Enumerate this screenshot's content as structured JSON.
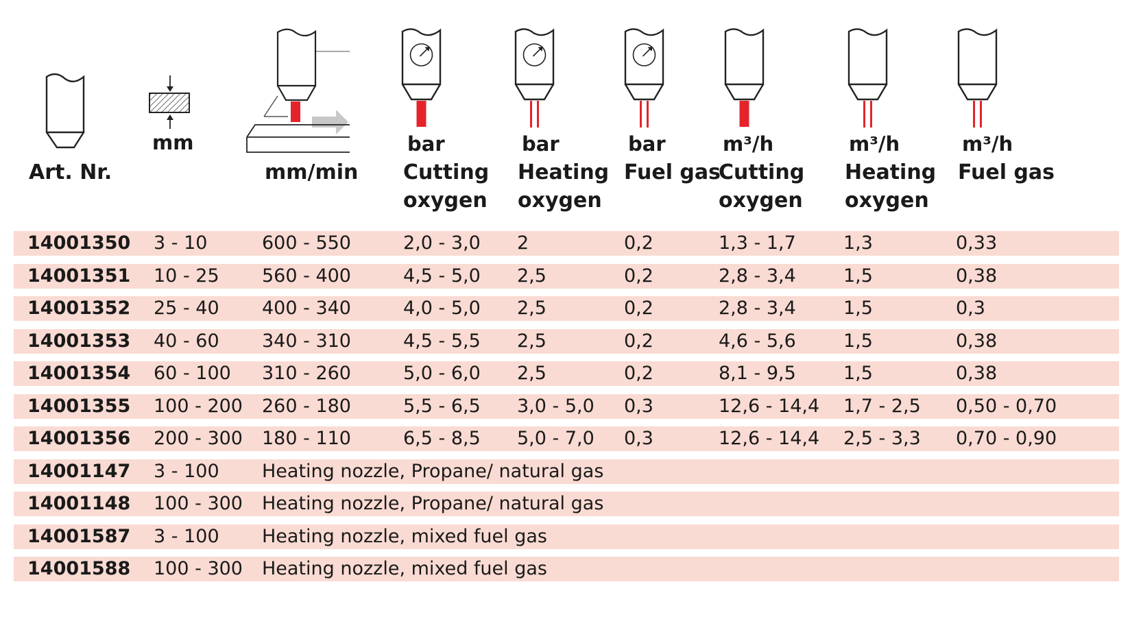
{
  "colors": {
    "row_bg": "#f9dbd3",
    "flame": "#e4242a",
    "arrow": "#c8c8c8"
  },
  "header": {
    "columns": [
      {
        "unit": "",
        "label1": "Art. Nr.",
        "label2": "",
        "icon": "nozzle-plain-icon"
      },
      {
        "unit": "mm",
        "label1": "",
        "label2": "",
        "icon": "thickness-hatch-icon"
      },
      {
        "unit": "",
        "label1": "mm/min",
        "label2": "",
        "icon": "cutting-speed-icon"
      },
      {
        "unit": "bar",
        "label1": "Cutting",
        "label2": "oxygen",
        "icon": "nozzle-gauge-cutting-icon"
      },
      {
        "unit": "bar",
        "label1": "Heating",
        "label2": "oxygen",
        "icon": "nozzle-gauge-heating-icon"
      },
      {
        "unit": "bar",
        "label1": "Fuel gas",
        "label2": "",
        "icon": "nozzle-gauge-fuel-icon"
      },
      {
        "unit": "m³/h",
        "label1": "Cutting",
        "label2": "oxygen",
        "icon": "nozzle-cutting-flow-icon"
      },
      {
        "unit": "m³/h",
        "label1": "Heating",
        "label2": "oxygen",
        "icon": "nozzle-heating-flow-icon"
      },
      {
        "unit": "m³/h",
        "label1": "Fuel gas",
        "label2": "",
        "icon": "nozzle-fuel-flow-icon"
      }
    ]
  },
  "rows": [
    {
      "art": "14001350",
      "mm": "3 - 10",
      "speed": "600 - 550",
      "bar_cut": "2,0 - 3,0",
      "bar_heat": "2",
      "bar_fuel": "0,2",
      "m3_cut": "1,3 - 1,7",
      "m3_heat": "1,3",
      "m3_fuel": "0,33"
    },
    {
      "art": "14001351",
      "mm": "10 - 25",
      "speed": "560 - 400",
      "bar_cut": "4,5 - 5,0",
      "bar_heat": "2,5",
      "bar_fuel": "0,2",
      "m3_cut": "2,8 - 3,4",
      "m3_heat": "1,5",
      "m3_fuel": "0,38"
    },
    {
      "art": "14001352",
      "mm": "25 - 40",
      "speed": "400 - 340",
      "bar_cut": "4,0 - 5,0",
      "bar_heat": "2,5",
      "bar_fuel": "0,2",
      "m3_cut": "2,8 - 3,4",
      "m3_heat": "1,5",
      "m3_fuel": "0,3"
    },
    {
      "art": "14001353",
      "mm": "40 - 60",
      "speed": "340 - 310",
      "bar_cut": "4,5 - 5,5",
      "bar_heat": "2,5",
      "bar_fuel": "0,2",
      "m3_cut": "4,6 - 5,6",
      "m3_heat": "1,5",
      "m3_fuel": "0,38"
    },
    {
      "art": "14001354",
      "mm": "60 - 100",
      "speed": "310 - 260",
      "bar_cut": "5,0 - 6,0",
      "bar_heat": "2,5",
      "bar_fuel": "0,2",
      "m3_cut": "8,1 - 9,5",
      "m3_heat": "1,5",
      "m3_fuel": "0,38"
    },
    {
      "art": "14001355",
      "mm": "100 - 200",
      "speed": "260 - 180",
      "bar_cut": "5,5 - 6,5",
      "bar_heat": "3,0 - 5,0",
      "bar_fuel": "0,3",
      "m3_cut": "12,6 - 14,4",
      "m3_heat": "1,7 - 2,5",
      "m3_fuel": "0,50 - 0,70"
    },
    {
      "art": "14001356",
      "mm": "200 - 300",
      "speed": "180 - 110",
      "bar_cut": "6,5 - 8,5",
      "bar_heat": "5,0 - 7,0",
      "bar_fuel": "0,3",
      "m3_cut": "12,6 - 14,4",
      "m3_heat": "2,5 - 3,3",
      "m3_fuel": "0,70 - 0,90"
    },
    {
      "art": "14001147",
      "mm": "3 - 100",
      "note": "Heating nozzle, Propane/ natural gas"
    },
    {
      "art": "14001148",
      "mm": "100 - 300",
      "note": "Heating nozzle, Propane/ natural gas"
    },
    {
      "art": "14001587",
      "mm": "3 - 100",
      "note": "Heating nozzle, mixed fuel gas"
    },
    {
      "art": "14001588",
      "mm": "100 - 300",
      "note": "Heating nozzle, mixed fuel gas"
    }
  ]
}
